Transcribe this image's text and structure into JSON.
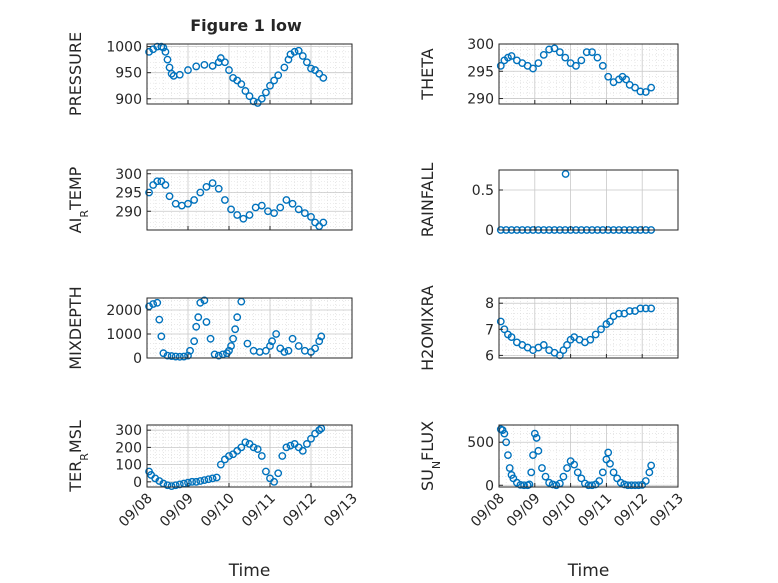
{
  "figure": {
    "title": "Figure 1 low"
  },
  "chart_data": [
    {
      "type": "scatter",
      "ylabel": "PRESSURE",
      "xlabel": "",
      "xlim": [
        "09/08",
        "09/13"
      ],
      "ylim": [
        890,
        1005
      ],
      "yticks": [
        900,
        950,
        1000
      ],
      "xticks": [
        "09/08",
        "09/09",
        "09/10",
        "09/11",
        "09/12",
        "09/13"
      ],
      "show_xticklabels": false,
      "grid": "major+minor",
      "marker_color": "#0072BD",
      "x": [
        0.05,
        0.15,
        0.25,
        0.35,
        0.4,
        0.45,
        0.5,
        0.55,
        0.6,
        0.65,
        0.8,
        1.0,
        1.2,
        1.4,
        1.6,
        1.75,
        1.8,
        1.9,
        2.0,
        2.1,
        2.2,
        2.3,
        2.4,
        2.5,
        2.6,
        2.7,
        2.8,
        2.9,
        3.0,
        3.1,
        3.2,
        3.35,
        3.45,
        3.5,
        3.6,
        3.7,
        3.8,
        3.9,
        4.0,
        4.1,
        4.2,
        4.3
      ],
      "y": [
        990,
        995,
        1000,
        1000,
        998,
        990,
        975,
        960,
        948,
        944,
        946,
        955,
        962,
        965,
        963,
        970,
        978,
        970,
        955,
        940,
        935,
        928,
        915,
        905,
        895,
        892,
        900,
        912,
        925,
        935,
        945,
        960,
        975,
        985,
        990,
        992,
        982,
        970,
        958,
        955,
        948,
        940
      ]
    },
    {
      "type": "scatter",
      "ylabel": "THETA",
      "xlabel": "",
      "xlim": [
        "09/08",
        "09/13"
      ],
      "ylim": [
        289,
        300
      ],
      "yticks": [
        290,
        295,
        300
      ],
      "xticks": [
        "09/08",
        "09/09",
        "09/10",
        "09/11",
        "09/12",
        "09/13"
      ],
      "show_xticklabels": false,
      "grid": "major+minor",
      "marker_color": "#0072BD",
      "x": [
        0.05,
        0.15,
        0.25,
        0.35,
        0.5,
        0.65,
        0.8,
        0.95,
        1.1,
        1.25,
        1.4,
        1.55,
        1.7,
        1.85,
        2.0,
        2.15,
        2.3,
        2.45,
        2.6,
        2.75,
        2.9,
        3.05,
        3.2,
        3.35,
        3.45,
        3.55,
        3.65,
        3.8,
        3.95,
        4.1,
        4.25
      ],
      "y": [
        296,
        297,
        297.5,
        297.8,
        297,
        296.5,
        296,
        295.5,
        296.5,
        298,
        299,
        299.2,
        298.5,
        297.5,
        296.5,
        296,
        297,
        298.5,
        298.5,
        297.5,
        296,
        294,
        293,
        293.5,
        294,
        293.5,
        292.5,
        292,
        291.3,
        291.2,
        292
      ]
    },
    {
      "type": "scatter",
      "ylabel": "AIR_TEMP",
      "xlabel": "",
      "xlim": [
        "09/08",
        "09/13"
      ],
      "ylim": [
        285,
        301
      ],
      "yticks": [
        290,
        295,
        300
      ],
      "xticks": [
        "09/08",
        "09/09",
        "09/10",
        "09/11",
        "09/12",
        "09/13"
      ],
      "show_xticklabels": false,
      "grid": "major+minor",
      "marker_color": "#0072BD",
      "x": [
        0.05,
        0.15,
        0.25,
        0.35,
        0.45,
        0.55,
        0.7,
        0.85,
        1.0,
        1.15,
        1.3,
        1.45,
        1.6,
        1.75,
        1.9,
        2.05,
        2.2,
        2.35,
        2.5,
        2.65,
        2.8,
        2.95,
        3.1,
        3.25,
        3.4,
        3.55,
        3.7,
        3.85,
        4.0,
        4.1,
        4.2,
        4.3
      ],
      "y": [
        295,
        297,
        298,
        298,
        297,
        294,
        292,
        291.5,
        292,
        293,
        295,
        296.5,
        297.5,
        296,
        293,
        290.5,
        289,
        288,
        289,
        291,
        291.5,
        290,
        289.5,
        291,
        293,
        292,
        290.5,
        289.5,
        288.5,
        287,
        286,
        287
      ]
    },
    {
      "type": "scatter",
      "ylabel": "RAINFALL",
      "xlabel": "",
      "xlim": [
        "09/08",
        "09/13"
      ],
      "ylim": [
        0,
        0.75
      ],
      "yticks": [
        0,
        0.5
      ],
      "xticks": [
        "09/08",
        "09/09",
        "09/10",
        "09/11",
        "09/12",
        "09/13"
      ],
      "show_xticklabels": false,
      "grid": "major",
      "marker_color": "#0072BD",
      "x": [
        0.05,
        0.2,
        0.35,
        0.5,
        0.65,
        0.8,
        0.95,
        1.1,
        1.25,
        1.4,
        1.55,
        1.7,
        1.85,
        1.86,
        2.0,
        2.15,
        2.3,
        2.45,
        2.6,
        2.75,
        2.9,
        3.05,
        3.2,
        3.35,
        3.5,
        3.65,
        3.8,
        3.95,
        4.1,
        4.25
      ],
      "y": [
        0,
        0,
        0,
        0,
        0,
        0,
        0,
        0,
        0,
        0,
        0,
        0,
        0,
        0.7,
        0,
        0,
        0,
        0,
        0,
        0,
        0,
        0,
        0,
        0,
        0,
        0,
        0,
        0,
        0,
        0
      ]
    },
    {
      "type": "scatter",
      "ylabel": "MIXDEPTH",
      "xlabel": "",
      "xlim": [
        "09/08",
        "09/13"
      ],
      "ylim": [
        0,
        2500
      ],
      "yticks": [
        0,
        1000,
        2000
      ],
      "xticks": [
        "09/08",
        "09/09",
        "09/10",
        "09/11",
        "09/12",
        "09/13"
      ],
      "show_xticklabels": false,
      "grid": "major+minor",
      "marker_color": "#0072BD",
      "x": [
        0.05,
        0.15,
        0.25,
        0.3,
        0.35,
        0.4,
        0.5,
        0.6,
        0.7,
        0.8,
        0.9,
        1.0,
        1.05,
        1.15,
        1.2,
        1.25,
        1.3,
        1.4,
        1.45,
        1.55,
        1.65,
        1.75,
        1.85,
        1.95,
        2.0,
        2.05,
        2.1,
        2.15,
        2.2,
        2.3,
        2.45,
        2.6,
        2.75,
        2.9,
        3.0,
        3.05,
        3.15,
        3.25,
        3.35,
        3.45,
        3.55,
        3.7,
        3.85,
        4.0,
        4.1,
        4.2,
        4.25
      ],
      "y": [
        2150,
        2250,
        2300,
        1600,
        900,
        200,
        100,
        80,
        60,
        50,
        60,
        100,
        300,
        700,
        1300,
        1700,
        2300,
        2400,
        1500,
        800,
        150,
        100,
        150,
        200,
        300,
        500,
        800,
        1200,
        1700,
        2350,
        600,
        300,
        250,
        300,
        500,
        700,
        1000,
        400,
        250,
        300,
        800,
        500,
        300,
        250,
        400,
        700,
        900
      ]
    },
    {
      "type": "scatter",
      "ylabel": "H2OMIXRA",
      "xlabel": "",
      "xlim": [
        "09/08",
        "09/13"
      ],
      "ylim": [
        5.9,
        8.2
      ],
      "yticks": [
        6,
        7,
        8
      ],
      "xticks": [
        "09/08",
        "09/09",
        "09/10",
        "09/11",
        "09/12",
        "09/13"
      ],
      "show_xticklabels": false,
      "grid": "major+minor",
      "marker_color": "#0072BD",
      "x": [
        0.05,
        0.15,
        0.25,
        0.35,
        0.5,
        0.65,
        0.8,
        0.95,
        1.1,
        1.25,
        1.4,
        1.55,
        1.7,
        1.8,
        1.9,
        2.0,
        2.1,
        2.25,
        2.4,
        2.55,
        2.7,
        2.85,
        3.0,
        3.1,
        3.2,
        3.35,
        3.5,
        3.65,
        3.8,
        3.95,
        4.1,
        4.25
      ],
      "y": [
        7.3,
        7.0,
        6.8,
        6.7,
        6.5,
        6.4,
        6.3,
        6.2,
        6.3,
        6.4,
        6.2,
        6.1,
        6.0,
        6.2,
        6.4,
        6.6,
        6.7,
        6.6,
        6.5,
        6.6,
        6.8,
        7.0,
        7.2,
        7.3,
        7.5,
        7.6,
        7.6,
        7.7,
        7.7,
        7.8,
        7.8,
        7.8
      ]
    },
    {
      "type": "scatter",
      "ylabel": "TERR_MSL",
      "xlabel": "Time",
      "xlim": [
        "09/08",
        "09/13"
      ],
      "ylim": [
        -30,
        330
      ],
      "yticks": [
        0,
        100,
        200,
        300
      ],
      "xticks": [
        "09/08",
        "09/09",
        "09/10",
        "09/11",
        "09/12",
        "09/13"
      ],
      "show_xticklabels": true,
      "grid": "major+minor",
      "marker_color": "#0072BD",
      "x": [
        0.05,
        0.1,
        0.2,
        0.3,
        0.4,
        0.5,
        0.6,
        0.7,
        0.8,
        0.9,
        1.0,
        1.1,
        1.2,
        1.3,
        1.4,
        1.5,
        1.6,
        1.7,
        1.8,
        1.9,
        2.0,
        2.1,
        2.2,
        2.3,
        2.4,
        2.5,
        2.6,
        2.7,
        2.8,
        2.9,
        3.0,
        3.1,
        3.2,
        3.3,
        3.4,
        3.5,
        3.6,
        3.7,
        3.8,
        3.9,
        4.0,
        4.1,
        4.2,
        4.25
      ],
      "y": [
        60,
        40,
        20,
        5,
        -10,
        -20,
        -25,
        -20,
        -15,
        -10,
        -5,
        0,
        0,
        5,
        10,
        15,
        20,
        25,
        100,
        130,
        150,
        160,
        180,
        200,
        230,
        220,
        200,
        190,
        150,
        60,
        20,
        0,
        50,
        150,
        200,
        210,
        220,
        200,
        180,
        220,
        250,
        280,
        300,
        310
      ]
    },
    {
      "type": "scatter",
      "ylabel": "SUN_FLUX",
      "xlabel": "Time",
      "xlim": [
        "09/08",
        "09/13"
      ],
      "ylim": [
        -20,
        700
      ],
      "yticks": [
        0,
        500
      ],
      "xticks": [
        "09/08",
        "09/09",
        "09/10",
        "09/11",
        "09/12",
        "09/13"
      ],
      "show_xticklabels": true,
      "grid": "major+minor",
      "marker_color": "#0072BD",
      "x": [
        0.05,
        0.1,
        0.15,
        0.2,
        0.25,
        0.3,
        0.35,
        0.4,
        0.5,
        0.6,
        0.7,
        0.8,
        0.85,
        0.9,
        0.95,
        1.0,
        1.05,
        1.1,
        1.2,
        1.3,
        1.4,
        1.5,
        1.6,
        1.7,
        1.8,
        1.9,
        2.0,
        2.1,
        2.2,
        2.3,
        2.4,
        2.5,
        2.6,
        2.7,
        2.8,
        2.9,
        3.0,
        3.05,
        3.1,
        3.2,
        3.3,
        3.4,
        3.5,
        3.6,
        3.7,
        3.8,
        3.9,
        4.0,
        4.1,
        4.2,
        4.25
      ],
      "y": [
        650,
        640,
        600,
        500,
        350,
        200,
        120,
        80,
        30,
        5,
        0,
        0,
        10,
        150,
        350,
        600,
        550,
        400,
        200,
        100,
        30,
        10,
        0,
        20,
        100,
        200,
        280,
        240,
        150,
        80,
        20,
        0,
        0,
        10,
        50,
        150,
        300,
        380,
        250,
        150,
        80,
        30,
        10,
        0,
        0,
        0,
        0,
        5,
        50,
        150,
        230
      ]
    }
  ]
}
